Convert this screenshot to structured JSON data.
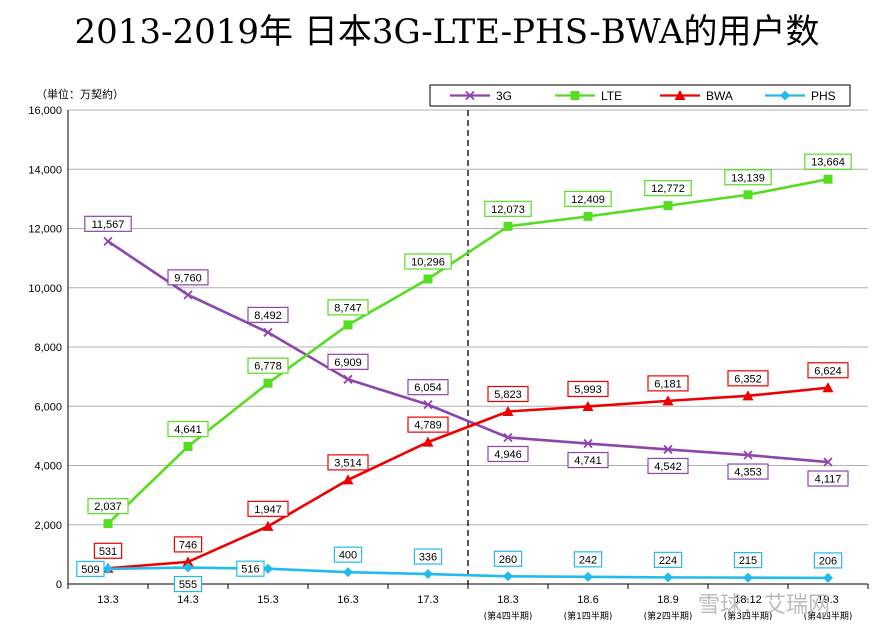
{
  "title": "2013-2019年 日本3G-LTE-PHS-BWA的用户数",
  "watermark": "雪球：艾瑞网",
  "chart_data": {
    "type": "line",
    "unit_label": "（単位：万契約）",
    "categories": [
      "13.3",
      "14.3",
      "15.3",
      "16.3",
      "17.3",
      "18.3",
      "18.6",
      "18.9",
      "18.12",
      "19.3"
    ],
    "category_sublabels": [
      "",
      "",
      "",
      "",
      "",
      "(第4四半期)",
      "(第1四半期)",
      "(第2四半期)",
      "(第3四半期)",
      "(第4四半期)"
    ],
    "ylim": [
      0,
      16000
    ],
    "yticks": [
      0,
      2000,
      4000,
      6000,
      8000,
      10000,
      12000,
      14000,
      16000
    ],
    "ytick_labels": [
      "0",
      "2,000",
      "4,000",
      "6,000",
      "8,000",
      "10,000",
      "12,000",
      "14,000",
      "16,000"
    ],
    "grid": true,
    "legend_position": "top",
    "divider_after_category": "17.3",
    "series": [
      {
        "name": "3G",
        "color": "#8e44ad",
        "marker": "x",
        "values": [
          11567,
          9760,
          8492,
          6909,
          6054,
          4946,
          4741,
          4542,
          4353,
          4117
        ],
        "labels": [
          "11,567",
          "9,760",
          "8,492",
          "6,909",
          "6,054",
          "4,946",
          "4,741",
          "4,542",
          "4,353",
          "4,117"
        ],
        "label_pos": [
          "above",
          "above",
          "above",
          "above",
          "above",
          "below",
          "below",
          "below",
          "below",
          "below"
        ]
      },
      {
        "name": "LTE",
        "color": "#55dd22",
        "marker": "square",
        "values": [
          2037,
          4641,
          6778,
          8747,
          10296,
          12073,
          12409,
          12772,
          13139,
          13664
        ],
        "labels": [
          "2,037",
          "4,641",
          "6,778",
          "8,747",
          "10,296",
          "12,073",
          "12,409",
          "12,772",
          "13,139",
          "13,664"
        ],
        "label_pos": [
          "above",
          "above",
          "above",
          "above",
          "above",
          "above",
          "above",
          "above",
          "above",
          "above"
        ]
      },
      {
        "name": "BWA",
        "color": "#ee0000",
        "marker": "triangle",
        "values": [
          531,
          746,
          1947,
          3514,
          4789,
          5823,
          5993,
          6181,
          6352,
          6624
        ],
        "labels": [
          "531",
          "746",
          "1,947",
          "3,514",
          "4,789",
          "5,823",
          "5,993",
          "6,181",
          "6,352",
          "6,624"
        ],
        "label_pos": [
          "above",
          "above",
          "above",
          "above",
          "above",
          "above",
          "above",
          "above",
          "above",
          "above"
        ]
      },
      {
        "name": "PHS",
        "color": "#22bbee",
        "marker": "diamond",
        "values": [
          509,
          555,
          516,
          400,
          336,
          260,
          242,
          224,
          215,
          206
        ],
        "labels": [
          "509",
          "555",
          "516",
          "400",
          "336",
          "260",
          "242",
          "224",
          "215",
          "206"
        ],
        "label_pos": [
          "left",
          "below",
          "left",
          "above",
          "above",
          "above",
          "above",
          "above",
          "above",
          "above"
        ]
      }
    ]
  }
}
